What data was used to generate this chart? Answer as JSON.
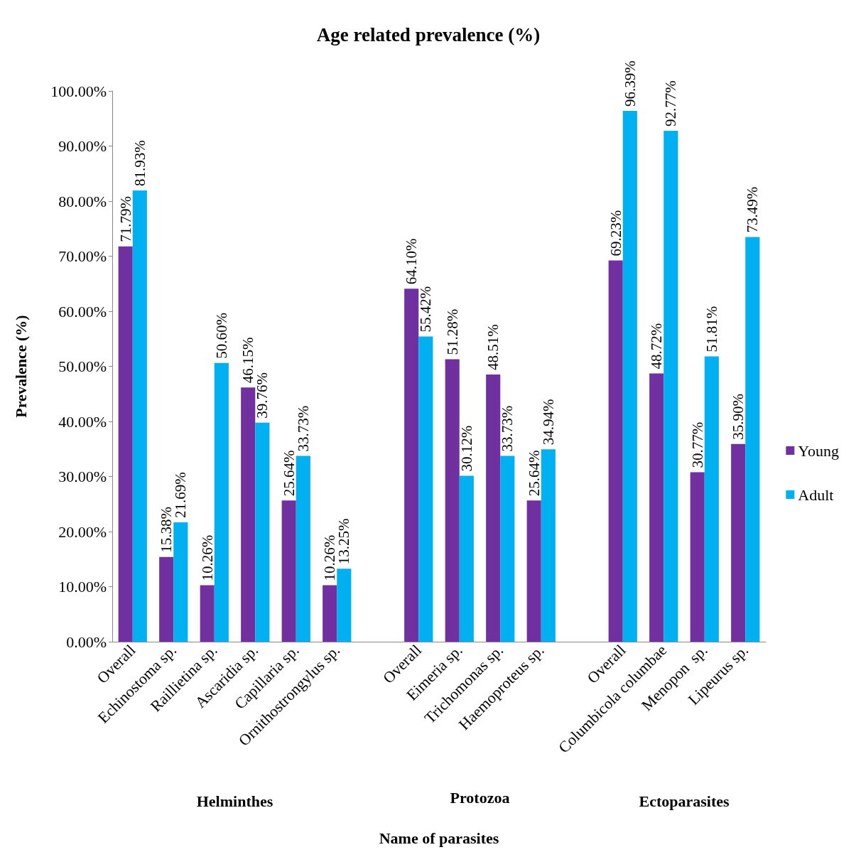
{
  "chart_data": {
    "type": "bar",
    "title": "Age related prevalence (%)",
    "xlabel": "Name of parasites",
    "ylabel": "Prevalence (%)",
    "categories": [
      "Overall",
      "Echinostoma sp.",
      "Raillietina sp.",
      "Ascaridia sp.",
      "Capillaria sp.",
      "Ornithostrongylus sp.",
      null,
      "Overall",
      "Eimeria sp.",
      "Trichomonas sp.",
      "Haemoproteus sp.",
      null,
      "Overall",
      "Columbicola columbae",
      "Menopon  sp.",
      "Lipeurus sp."
    ],
    "series": [
      {
        "name": "Young",
        "color": "#7030a0",
        "values": [
          71.79,
          15.38,
          10.26,
          46.15,
          25.64,
          10.26,
          null,
          64.1,
          51.28,
          48.51,
          25.64,
          null,
          69.23,
          48.72,
          30.77,
          35.9
        ],
        "value_labels": [
          "71.79%",
          "15.38%",
          "10.26%",
          "46.15%",
          "25.64%",
          "10.26%",
          null,
          "64.10%",
          "51.28%",
          "48.51%",
          "25.64%",
          null,
          "69.23%",
          "48.72%",
          "30.77%",
          "35.90%"
        ]
      },
      {
        "name": "Adult",
        "color": "#00b0f0",
        "values": [
          81.93,
          21.69,
          50.6,
          39.76,
          33.73,
          13.25,
          null,
          55.42,
          30.12,
          33.73,
          34.94,
          null,
          96.39,
          92.77,
          51.81,
          73.49
        ],
        "value_labels": [
          "81.93%",
          "21.69%",
          "50.60%",
          "39.76%",
          "33.73%",
          "13.25%",
          null,
          "55.42%",
          "30.12%",
          "33.73%",
          "34.94%",
          null,
          "96.39%",
          "92.77%",
          "51.81%",
          "73.49%"
        ]
      }
    ],
    "ylim": [
      0,
      100
    ],
    "yticks": [
      {
        "value": 0,
        "label": "0.00%"
      },
      {
        "value": 10,
        "label": "10.00%"
      },
      {
        "value": 20,
        "label": "20.00%"
      },
      {
        "value": 30,
        "label": "30.00%"
      },
      {
        "value": 40,
        "label": "40.00%"
      },
      {
        "value": 50,
        "label": "50.00%"
      },
      {
        "value": 60,
        "label": "60.00%"
      },
      {
        "value": 70,
        "label": "70.00%"
      },
      {
        "value": 80,
        "label": "80.00%"
      },
      {
        "value": 90,
        "label": "90.00%"
      },
      {
        "value": 100,
        "label": "100.00%"
      }
    ],
    "grid": false,
    "legend": "right",
    "annotations": [
      "Helminthes",
      "Protozoa",
      "Ectoparasites"
    ]
  }
}
